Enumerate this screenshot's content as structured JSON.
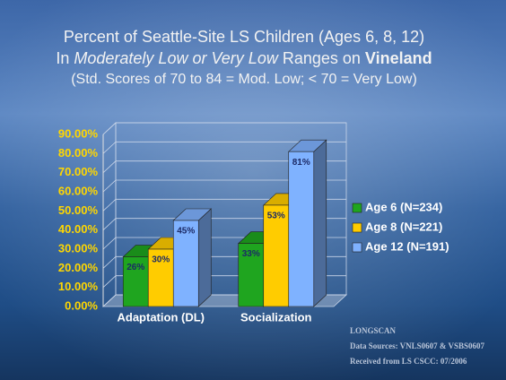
{
  "chart_data": {
    "type": "bar3d",
    "title": "Percent of Seattle-Site LS Children (Ages 6, 8, 12)",
    "subtitle_parts": [
      "In",
      "Moderately Low or Very Low",
      "Ranges on",
      "Vineland"
    ],
    "note": "(Std. Scores of 70 to 84 = Mod. Low; < 70 = Very Low)",
    "categories": [
      "Adaptation (DL)",
      "Socialization"
    ],
    "series": [
      {
        "name": "Age 6 (N=234)",
        "color": "#1fa51f",
        "values": [
          26,
          33
        ],
        "value_labels": [
          "26%",
          "33%"
        ]
      },
      {
        "name": "Age 8 (N=221)",
        "color": "#ffcc00",
        "values": [
          30,
          53
        ],
        "value_labels": [
          "30%",
          "53%"
        ]
      },
      {
        "name": "Age 12 (N=191)",
        "color": "#7fb2ff",
        "values": [
          45,
          81
        ],
        "value_labels": [
          "45%",
          "81%"
        ]
      }
    ],
    "ylim": [
      0,
      90
    ],
    "yticks": [
      {
        "value": 0,
        "label": "0.00%"
      },
      {
        "value": 10,
        "label": "10.00%"
      },
      {
        "value": 20,
        "label": "20.00%"
      },
      {
        "value": 30,
        "label": "30.00%"
      },
      {
        "value": 40,
        "label": "40.00%"
      },
      {
        "value": 50,
        "label": "50.00%"
      },
      {
        "value": 60,
        "label": "60.00%"
      },
      {
        "value": 70,
        "label": "70.00%"
      },
      {
        "value": 80,
        "label": "80.00%"
      },
      {
        "value": 90,
        "label": "90.00%"
      }
    ],
    "grid": true,
    "source": [
      "LONGSCAN",
      "Data Sources:  VNLS0607 & VSBS0607",
      "Received from LS CSCC: 07/2006"
    ]
  }
}
